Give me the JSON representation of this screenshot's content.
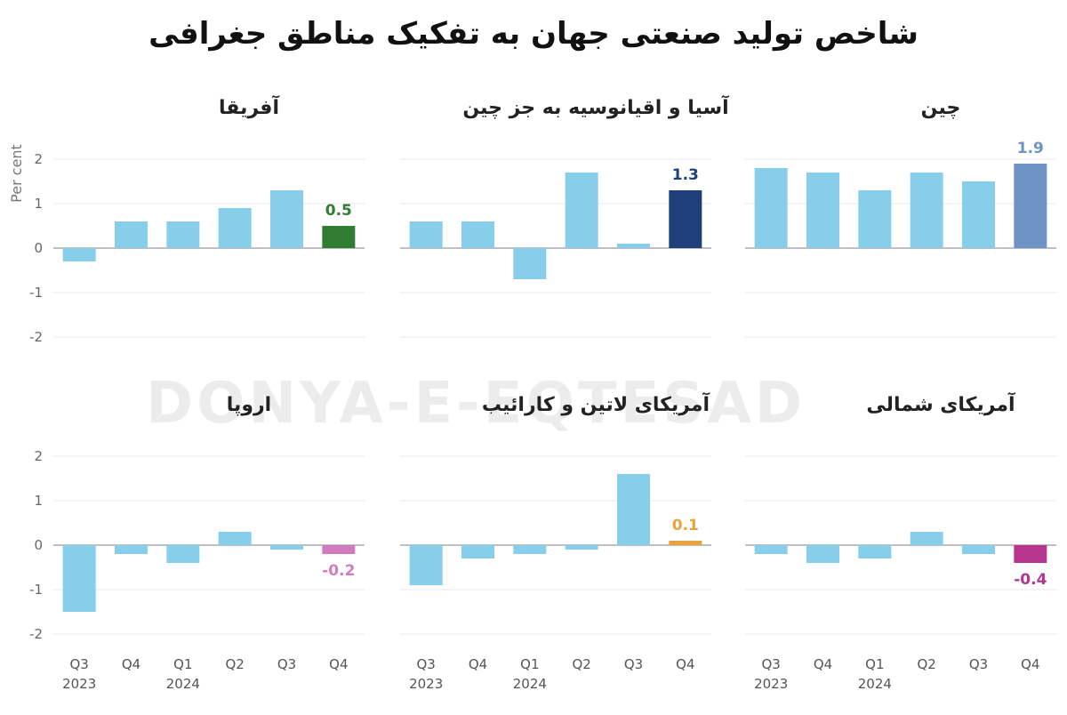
{
  "title": "شاخص تولید صنعتی جهان به تفکیک مناطق جغرافی",
  "watermark": "DONYA-E-EQTESAD",
  "colors": {
    "bar": "#87ceeb"
  },
  "chart_data": [
    {
      "type": "bar",
      "title": "آفریقا",
      "categories": [
        "Q3 2023",
        "Q4",
        "Q1 2024",
        "Q2",
        "Q3",
        "Q4"
      ],
      "values": [
        -0.3,
        0.6,
        0.6,
        0.9,
        1.3,
        0.5
      ],
      "ylabel": "Per cent",
      "ylim": [
        -2,
        2
      ],
      "yticks": [
        2,
        1,
        0,
        -1,
        -2
      ],
      "highlight": {
        "index": 5,
        "label": "0.5",
        "color": "#2e7d32"
      }
    },
    {
      "type": "bar",
      "title": "آسیا و اقیانوسیه به جز چین",
      "categories": [
        "Q3 2023",
        "Q4",
        "Q1 2024",
        "Q2",
        "Q3",
        "Q4"
      ],
      "values": [
        0.6,
        0.6,
        -0.7,
        1.7,
        0.1,
        1.3
      ],
      "ylim": [
        -2,
        2
      ],
      "highlight": {
        "index": 5,
        "label": "1.3",
        "color": "#1f3f7a"
      }
    },
    {
      "type": "bar",
      "title": "چین",
      "categories": [
        "Q3 2023",
        "Q4",
        "Q1 2024",
        "Q2",
        "Q3",
        "Q4"
      ],
      "values": [
        1.8,
        1.7,
        1.3,
        1.7,
        1.5,
        1.9
      ],
      "ylim": [
        -2,
        2
      ],
      "highlight": {
        "index": 5,
        "label": "1.9",
        "color": "#6e93c4"
      }
    },
    {
      "type": "bar",
      "title": "اروپا",
      "categories": [
        "Q3 2023",
        "Q4",
        "Q1 2024",
        "Q2",
        "Q3",
        "Q4"
      ],
      "values": [
        -1.5,
        -0.2,
        -0.4,
        0.3,
        -0.1,
        -0.2
      ],
      "ylim": [
        -2,
        2
      ],
      "yticks": [
        2,
        1,
        0,
        -1,
        -2
      ],
      "highlight": {
        "index": 5,
        "label": "-0.2",
        "color": "#d17bc0"
      }
    },
    {
      "type": "bar",
      "title": "آمریکای لاتین و کارائیب",
      "categories": [
        "Q3 2023",
        "Q4",
        "Q1 2024",
        "Q2",
        "Q3",
        "Q4"
      ],
      "values": [
        -0.9,
        -0.3,
        -0.2,
        -0.1,
        1.6,
        0.1
      ],
      "ylim": [
        -2,
        2
      ],
      "highlight": {
        "index": 5,
        "label": "0.1",
        "color": "#e8a33d"
      }
    },
    {
      "type": "bar",
      "title": "آمریکای شمالی",
      "categories": [
        "Q3 2023",
        "Q4",
        "Q1 2024",
        "Q2",
        "Q3",
        "Q4"
      ],
      "values": [
        -0.2,
        -0.4,
        -0.3,
        0.3,
        -0.2,
        -0.4
      ],
      "ylim": [
        -2,
        2
      ],
      "highlight": {
        "index": 5,
        "label": "-0.4",
        "color": "#b5358f"
      }
    }
  ]
}
